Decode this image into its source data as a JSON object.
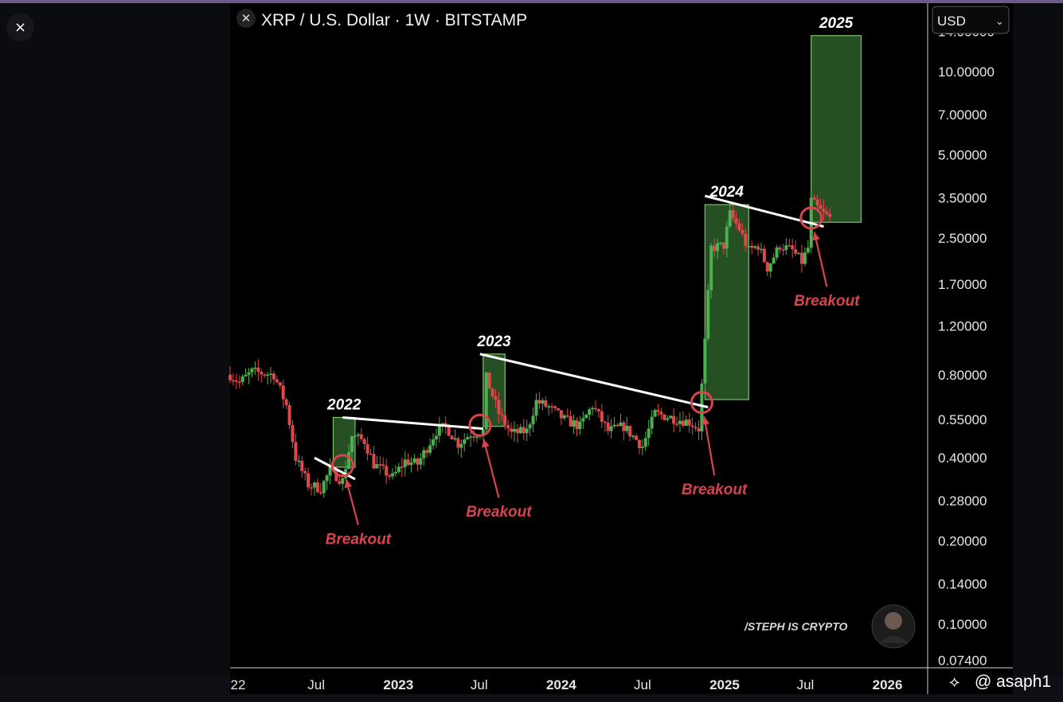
{
  "header": {
    "title": "XRP / U.S. Dollar · 1W · BITSTAMP",
    "currency": "USD"
  },
  "close_label": "×",
  "watermark": {
    "brand": "/STEPH IS CRYPTO",
    "credit": "@ asaph1"
  },
  "colors": {
    "up": "#4caf50",
    "down": "#e0474c",
    "zone_fill": "#2e5d2a",
    "zone_stroke": "#7fc26a",
    "annotation": "#d9434b",
    "trendline": "#ffffff"
  },
  "chart_data": {
    "type": "candlestick",
    "title": "XRP / U.S. Dollar · 1W · BITSTAMP",
    "scale": "log",
    "ylim": [
      0.07,
      17
    ],
    "y_ticks": [
      14.0,
      10.0,
      7.0,
      5.0,
      3.5,
      2.5,
      1.7,
      1.2,
      0.8,
      0.55,
      0.4,
      0.28,
      0.2,
      0.14,
      0.1,
      0.074
    ],
    "y_tick_labels": [
      "14.00000",
      "10.00000",
      "7.00000",
      "5.00000",
      "3.50000",
      "2.50000",
      "1.70000",
      "1.20000",
      "0.80000",
      "0.55000",
      "0.40000",
      "0.28000",
      "0.20000",
      "0.14000",
      "0.10000",
      "0.07400"
    ],
    "x_ticks": [
      "2022-01-01",
      "2022-07-01",
      "2023-01-01",
      "2023-07-01",
      "2024-01-01",
      "2024-07-01",
      "2025-01-01",
      "2025-07-01",
      "2026-01-01"
    ],
    "x_tick_labels": [
      "22",
      "Jul",
      "2023",
      "Jul",
      "2024",
      "Jul",
      "2025",
      "Jul",
      "2026"
    ],
    "xlim": [
      "2021-12-20",
      "2026-04-01"
    ],
    "price_path": [
      [
        "2021-12-20",
        0.8
      ],
      [
        "2022-01-10",
        0.75
      ],
      [
        "2022-02-07",
        0.82
      ],
      [
        "2022-03-28",
        0.8
      ],
      [
        "2022-04-25",
        0.62
      ],
      [
        "2022-05-16",
        0.4
      ],
      [
        "2022-06-13",
        0.32
      ],
      [
        "2022-07-11",
        0.31
      ],
      [
        "2022-08-01",
        0.36
      ],
      [
        "2022-08-29",
        0.33
      ],
      [
        "2022-09-19",
        0.48
      ],
      [
        "2022-10-17",
        0.46
      ],
      [
        "2022-11-07",
        0.38
      ],
      [
        "2022-12-19",
        0.34
      ],
      [
        "2023-01-16",
        0.39
      ],
      [
        "2023-02-13",
        0.38
      ],
      [
        "2023-03-27",
        0.5
      ],
      [
        "2023-04-17",
        0.52
      ],
      [
        "2023-05-15",
        0.45
      ],
      [
        "2023-06-12",
        0.49
      ],
      [
        "2023-07-10",
        0.5
      ],
      [
        "2023-07-17",
        0.78
      ],
      [
        "2023-08-14",
        0.58
      ],
      [
        "2023-09-11",
        0.49
      ],
      [
        "2023-10-16",
        0.5
      ],
      [
        "2023-11-06",
        0.64
      ],
      [
        "2023-12-04",
        0.61
      ],
      [
        "2024-01-08",
        0.55
      ],
      [
        "2024-02-12",
        0.52
      ],
      [
        "2024-03-11",
        0.62
      ],
      [
        "2024-04-15",
        0.5
      ],
      [
        "2024-05-20",
        0.52
      ],
      [
        "2024-07-01",
        0.44
      ],
      [
        "2024-07-29",
        0.58
      ],
      [
        "2024-09-02",
        0.56
      ],
      [
        "2024-10-14",
        0.54
      ],
      [
        "2024-11-04",
        0.51
      ],
      [
        "2024-11-18",
        1.05
      ],
      [
        "2024-12-02",
        2.3
      ],
      [
        "2024-12-30",
        2.35
      ],
      [
        "2025-01-13",
        3.05
      ],
      [
        "2025-02-03",
        2.7
      ],
      [
        "2025-02-24",
        2.25
      ],
      [
        "2025-03-17",
        2.35
      ],
      [
        "2025-04-07",
        1.95
      ],
      [
        "2025-05-05",
        2.35
      ],
      [
        "2025-06-02",
        2.25
      ],
      [
        "2025-06-23",
        2.05
      ],
      [
        "2025-07-07",
        2.3
      ],
      [
        "2025-07-14",
        3.4
      ],
      [
        "2025-08-11",
        3.05
      ],
      [
        "2025-08-25",
        2.95
      ]
    ],
    "target_zones": [
      {
        "label": "2022",
        "x_start": "2022-08-08",
        "x_end": "2022-09-26",
        "y_low": 0.37,
        "y_high": 0.56
      },
      {
        "label": "2023",
        "x_start": "2023-07-10",
        "x_end": "2023-08-28",
        "y_low": 0.52,
        "y_high": 0.95
      },
      {
        "label": "2024",
        "x_start": "2024-11-18",
        "x_end": "2025-02-24",
        "y_low": 0.65,
        "y_high": 3.3
      },
      {
        "label": "2025",
        "x_start": "2025-07-14",
        "x_end": "2025-11-03",
        "y_low": 2.85,
        "y_high": 13.5
      }
    ],
    "trendlines": [
      {
        "x1": "2022-06-27",
        "y1": 0.4,
        "x2": "2022-09-26",
        "y2": 0.335
      },
      {
        "x1": "2022-08-29",
        "y1": 0.56,
        "x2": "2023-07-10",
        "y2": 0.51
      },
      {
        "x1": "2023-07-03",
        "y1": 0.95,
        "x2": "2024-11-25",
        "y2": 0.61
      },
      {
        "x1": "2024-11-18",
        "y1": 3.55,
        "x2": "2025-08-11",
        "y2": 2.75
      }
    ],
    "annotations": [
      {
        "label": "Breakout",
        "circle_x": "2022-08-29",
        "circle_y": 0.375,
        "label_x": "2022-10-03",
        "label_y": 0.195
      },
      {
        "label": "Breakout",
        "circle_x": "2023-07-03",
        "circle_y": 0.525,
        "label_x": "2023-08-14",
        "label_y": 0.245
      },
      {
        "label": "Breakout",
        "circle_x": "2024-11-11",
        "circle_y": 0.635,
        "label_x": "2024-12-09",
        "label_y": 0.295
      },
      {
        "label": "Breakout",
        "circle_x": "2025-07-14",
        "circle_y": 2.95,
        "label_x": "2025-08-18",
        "label_y": 1.42
      }
    ]
  }
}
